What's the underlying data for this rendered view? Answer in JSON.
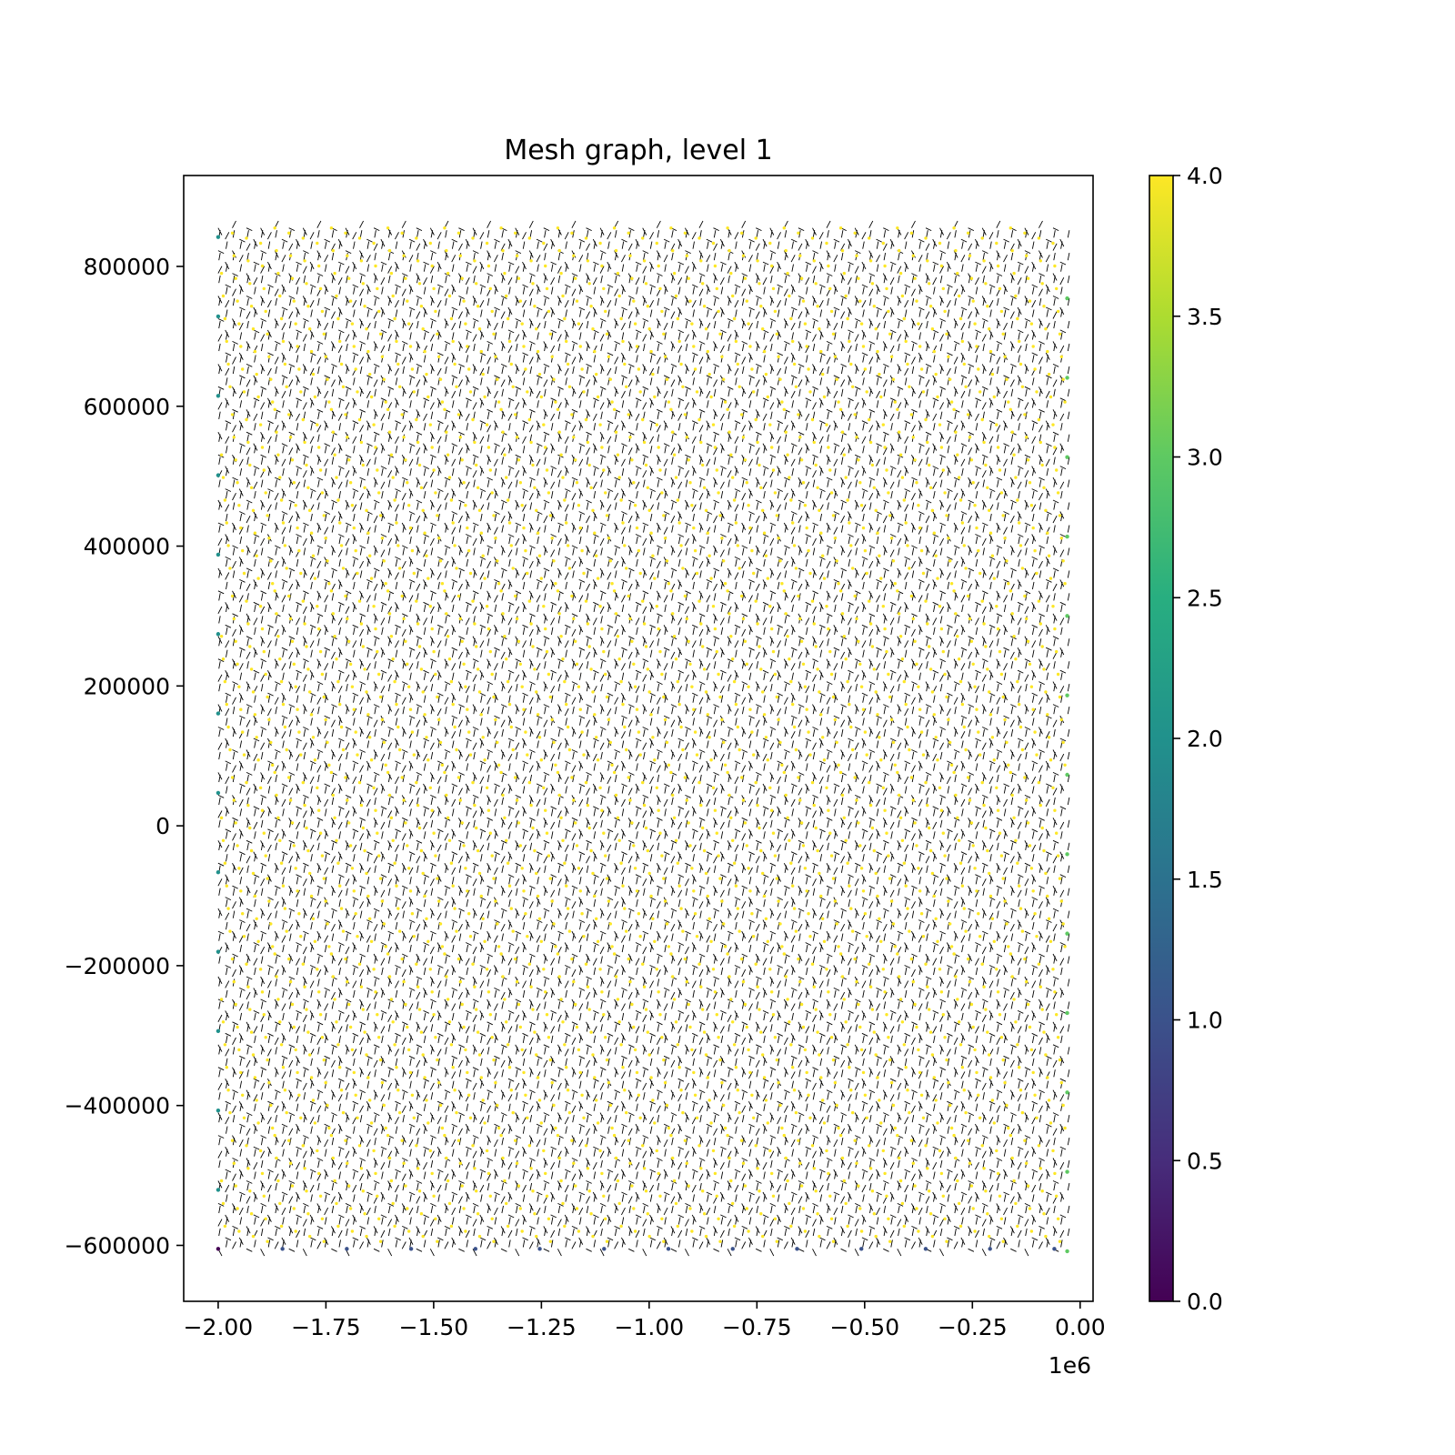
{
  "chart_data": {
    "type": "scatter",
    "title": "Mesh graph, level 1",
    "xlabel": "",
    "ylabel": "",
    "x_offset_label": "1e6",
    "xlim": [
      -2080000,
      30000
    ],
    "ylim": [
      -680000,
      930000
    ],
    "x_ticks": [
      -2000000,
      -1750000,
      -1500000,
      -1250000,
      -1000000,
      -750000,
      -500000,
      -250000,
      0
    ],
    "x_tick_labels": [
      "−2.00",
      "−1.75",
      "−1.50",
      "−1.25",
      "−1.00",
      "−0.75",
      "−0.50",
      "−0.25",
      "0.00"
    ],
    "y_ticks": [
      -600000,
      -400000,
      -200000,
      0,
      200000,
      400000,
      600000,
      800000
    ],
    "y_tick_labels": [
      "−600000",
      "−400000",
      "−200000",
      "0",
      "200000",
      "400000",
      "600000",
      "800000"
    ],
    "grid": false,
    "mesh": {
      "x_min": -2000000,
      "x_max": -30000,
      "y_min": -605000,
      "y_max": 855000,
      "columns": 60,
      "rows": 90,
      "edge_color": "#000000",
      "node_value_interior": 4,
      "node_value_left_edge": 2,
      "node_value_right_edge": 3,
      "node_value_bottom_edge": 1,
      "node_value_corner": 0
    },
    "colorbar": {
      "colormap": "viridis",
      "range": [
        0,
        4
      ],
      "ticks": [
        0,
        0.5,
        1,
        1.5,
        2,
        2.5,
        3,
        3.5,
        4
      ],
      "tick_labels": [
        "0.0",
        "0.5",
        "1.0",
        "1.5",
        "2.0",
        "2.5",
        "3.0",
        "3.5",
        "4.0"
      ],
      "colors": [
        "#440154",
        "#472d7b",
        "#3b528b",
        "#2c728e",
        "#21918c",
        "#28ae80",
        "#5ec962",
        "#addc30",
        "#fde725"
      ]
    }
  }
}
